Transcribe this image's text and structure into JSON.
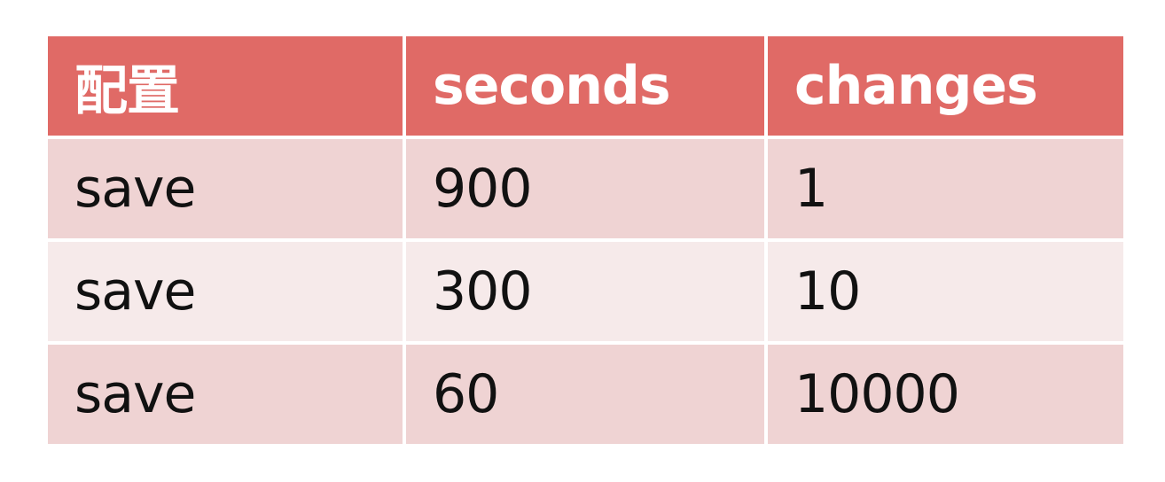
{
  "table": {
    "headers": [
      "配置",
      "seconds",
      "changes"
    ],
    "rows": [
      [
        "save",
        "900",
        "1"
      ],
      [
        "save",
        "300",
        "10"
      ],
      [
        "save",
        "60",
        "10000"
      ]
    ]
  },
  "colors": {
    "header_bg": "#e06a66",
    "header_text": "#ffffff",
    "row_dark": "#efd3d3",
    "row_light": "#f6eaea",
    "body_text": "#111111"
  }
}
